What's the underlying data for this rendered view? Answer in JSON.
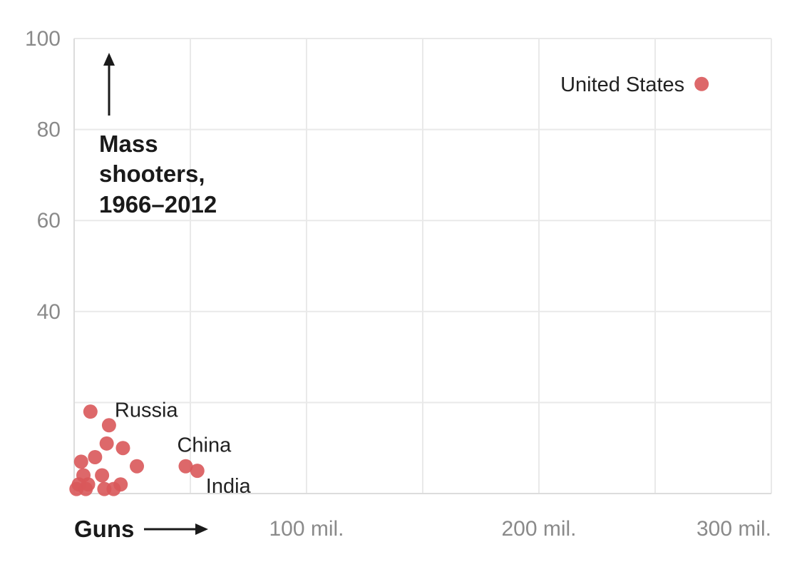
{
  "chart_data": {
    "type": "scatter",
    "ylabel_lines": [
      "Mass",
      "shooters,",
      "1966–2012"
    ],
    "xlabel": "Guns",
    "xlim": [
      0,
      300
    ],
    "ylim": [
      0,
      100
    ],
    "x_ticks": [
      {
        "value": 100,
        "label": "100 mil."
      },
      {
        "value": 200,
        "label": "200 mil."
      },
      {
        "value": 300,
        "label": "300 mil."
      }
    ],
    "y_ticks": [
      {
        "value": 40,
        "label": "40"
      },
      {
        "value": 60,
        "label": "60"
      },
      {
        "value": 80,
        "label": "80"
      },
      {
        "value": 100,
        "label": "100"
      }
    ],
    "grid": true,
    "point_color": "#d9585a",
    "points": [
      {
        "label": "United States",
        "x": 270,
        "y": 90
      },
      {
        "label": "Russia",
        "x": 15,
        "y": 15
      },
      {
        "label": "China",
        "x": 48,
        "y": 6
      },
      {
        "label": "India",
        "x": 53,
        "y": 5
      },
      {
        "label": "",
        "x": 7,
        "y": 18
      },
      {
        "label": "",
        "x": 14,
        "y": 11
      },
      {
        "label": "",
        "x": 21,
        "y": 10
      },
      {
        "label": "",
        "x": 9,
        "y": 8
      },
      {
        "label": "",
        "x": 27,
        "y": 6
      },
      {
        "label": "",
        "x": 3,
        "y": 7
      },
      {
        "label": "",
        "x": 4,
        "y": 4
      },
      {
        "label": "",
        "x": 12,
        "y": 4
      },
      {
        "label": "",
        "x": 2,
        "y": 2
      },
      {
        "label": "",
        "x": 6,
        "y": 2
      },
      {
        "label": "",
        "x": 20,
        "y": 2
      },
      {
        "label": "",
        "x": 5,
        "y": 1
      },
      {
        "label": "",
        "x": 13,
        "y": 1
      },
      {
        "label": "",
        "x": 17,
        "y": 1
      },
      {
        "label": "",
        "x": 1,
        "y": 1
      }
    ]
  }
}
